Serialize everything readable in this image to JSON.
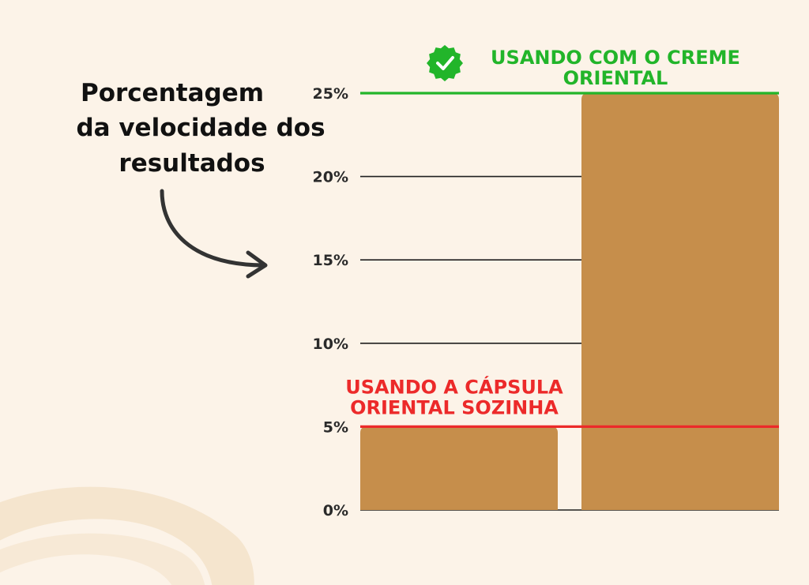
{
  "side_title": {
    "lines": [
      "Porcentagem",
      "da velocidade dos",
      "resultados"
    ]
  },
  "colors": {
    "background": "#fcf3e8",
    "bar": "#c68e4b",
    "green": "#22b52a",
    "red": "#ec2a2a",
    "gridline": "#1f1f1f",
    "arrow": "#333333",
    "brush": "#f3e2c9"
  },
  "chart_data": {
    "type": "bar",
    "categories": [
      "Usando a cápsula Oriental sozinha",
      "Usando com o creme Oriental"
    ],
    "values": [
      5,
      25
    ],
    "ylim": [
      0,
      25
    ],
    "yticks": [
      0,
      5,
      10,
      15,
      20,
      25
    ],
    "ytick_labels": [
      "0%",
      "5%",
      "10%",
      "15%",
      "20%",
      "25%"
    ],
    "grid": true,
    "annotations": [
      {
        "text_lines": [
          "USANDO A CÁPSULA",
          "ORIENTAL SOZINHA"
        ],
        "at_value": 5,
        "color": "red",
        "icon": "none"
      },
      {
        "text_lines": [
          "USANDO COM O CREME",
          "ORIENTAL"
        ],
        "at_value": 25,
        "color": "green",
        "icon": "check-badge-icon"
      }
    ]
  }
}
